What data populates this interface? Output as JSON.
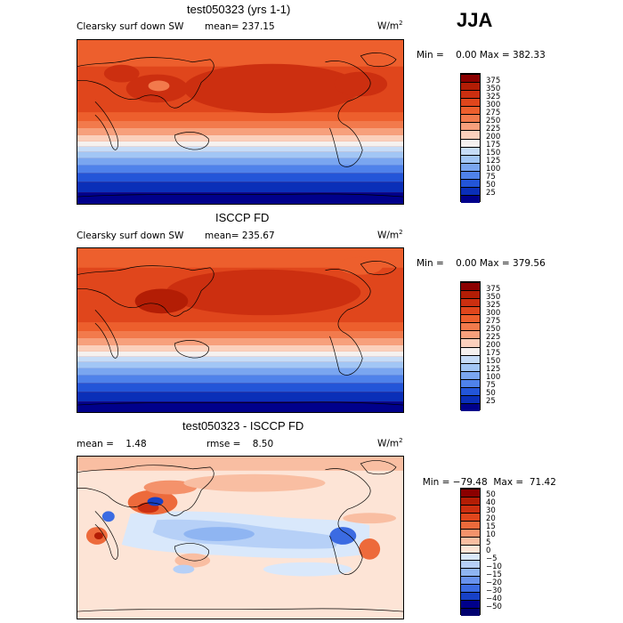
{
  "season": "JJA",
  "panels": [
    {
      "title": "test050323 (yrs 1-1)",
      "left_label": "Clearsky surf down SW",
      "mean_label": "mean= 237.15",
      "unit_base": "W/m",
      "unit_exp": "2",
      "min_label": "Min =",
      "min_value": "0.00",
      "max_label": "Max = 382.33"
    },
    {
      "title": "ISCCP FD",
      "left_label": "Clearsky surf down SW",
      "mean_label": "mean= 235.67",
      "unit_base": "W/m",
      "unit_exp": "2",
      "min_label": "Min =",
      "min_value": "0.00",
      "max_label": "Max = 379.56"
    },
    {
      "title": "test050323 - ISCCP FD",
      "left_label": "mean =    1.48",
      "mean_label": "rmse =    8.50",
      "unit_base": "W/m",
      "unit_exp": "2",
      "min_label": "Min = −79.48",
      "min_value": "",
      "max_label": "Max =  71.42"
    }
  ],
  "colorbars": {
    "absolute": {
      "ticks": [
        "375",
        "350",
        "325",
        "300",
        "275",
        "250",
        "225",
        "200",
        "175",
        "150",
        "125",
        "100",
        "75",
        "50",
        "25"
      ],
      "colors": [
        "#8b0000",
        "#b31d05",
        "#cc2f10",
        "#e0461c",
        "#ed5f2d",
        "#f27a4c",
        "#f7a07c",
        "#fbd0bc",
        "#f5f1ef",
        "#c6dcf7",
        "#a2c6f5",
        "#7aa6f0",
        "#4f82ea",
        "#2355d8",
        "#0a2fb8",
        "#00008b"
      ]
    },
    "difference": {
      "ticks": [
        "50",
        "40",
        "30",
        "20",
        "15",
        "10",
        "5",
        "0",
        "−5",
        "−10",
        "−15",
        "−20",
        "−30",
        "−40",
        "−50"
      ],
      "colors": [
        "#8b0000",
        "#b31d05",
        "#cc2f10",
        "#e0461c",
        "#ed6a3b",
        "#f4926b",
        "#f9bea2",
        "#fde4d6",
        "#d9e8fb",
        "#b6d0f7",
        "#8fb5f2",
        "#6892ed",
        "#3b6be2",
        "#1741c7",
        "#00008b",
        "#000070"
      ]
    }
  },
  "chart_data": {
    "type": "heatmap",
    "season": "JJA",
    "variable": "Clearsky surf down SW",
    "units": "W/m^2",
    "panels": [
      {
        "name": "test050323 (yrs 1-1)",
        "mean": 237.15,
        "min": 0.0,
        "max": 382.33,
        "contour_levels": [
          25,
          50,
          75,
          100,
          125,
          150,
          175,
          200,
          225,
          250,
          275,
          300,
          325,
          350,
          375
        ]
      },
      {
        "name": "ISCCP FD",
        "mean": 235.67,
        "min": 0.0,
        "max": 379.56,
        "contour_levels": [
          25,
          50,
          75,
          100,
          125,
          150,
          175,
          200,
          225,
          250,
          275,
          300,
          325,
          350,
          375
        ]
      },
      {
        "name": "test050323 - ISCCP FD",
        "mean": 1.48,
        "rmse": 8.5,
        "min": -79.48,
        "max": 71.42,
        "contour_levels": [
          -50,
          -40,
          -30,
          -20,
          -15,
          -10,
          -5,
          0,
          5,
          10,
          15,
          20,
          30,
          40,
          50
        ]
      }
    ]
  }
}
